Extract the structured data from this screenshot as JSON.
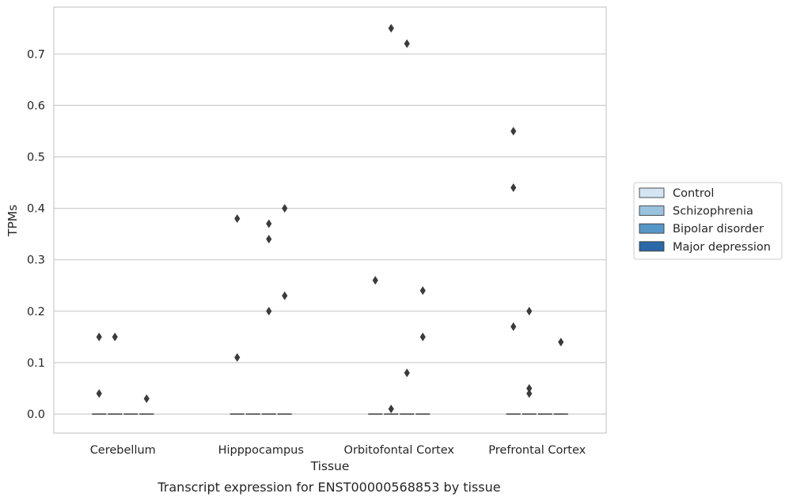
{
  "chart_data": {
    "type": "box",
    "xlabel": "Tissue",
    "ylabel": "TPMs",
    "caption": "Transcript expression for ENST00000568853 by tissue",
    "categories": [
      "Cerebellum",
      "Hipppocampus",
      "Orbitofontal Cortex",
      "Prefrontal Cortex"
    ],
    "yticks": [
      0.0,
      0.1,
      0.2,
      0.3,
      0.4,
      0.5,
      0.6,
      0.7
    ],
    "ytick_labels": [
      "0.0",
      "0.1",
      "0.2",
      "0.3",
      "0.4",
      "0.5",
      "0.6",
      "0.7"
    ],
    "ylim": [
      -0.037,
      0.791
    ],
    "grid": true,
    "legend_position": "right-center",
    "series": [
      {
        "name": "Control",
        "color": "#d4e4f2",
        "median": [
          0,
          0,
          0,
          0
        ],
        "outliers": [
          [
            0.15,
            0.04
          ],
          [
            0.38,
            0.11
          ],
          [
            0.26
          ],
          [
            0.55,
            0.44,
            0.17
          ]
        ]
      },
      {
        "name": "Schizophrenia",
        "color": "#9ac3e0",
        "median": [
          0,
          0,
          0,
          0
        ],
        "outliers": [
          [
            0.15
          ],
          [],
          [
            0.75,
            0.01
          ],
          [
            0.2,
            0.05,
            0.04
          ]
        ]
      },
      {
        "name": "Bipolar disorder",
        "color": "#5697c8",
        "median": [
          0,
          0,
          0,
          0
        ],
        "outliers": [
          [],
          [
            0.37,
            0.34,
            0.2
          ],
          [
            0.72,
            0.08
          ],
          []
        ]
      },
      {
        "name": "Major depression",
        "color": "#2a68a8",
        "median": [
          0,
          0,
          0,
          0
        ],
        "outliers": [
          [
            0.03
          ],
          [
            0.4,
            0.23
          ],
          [
            0.24,
            0.15
          ],
          [
            0.14
          ]
        ]
      }
    ]
  }
}
